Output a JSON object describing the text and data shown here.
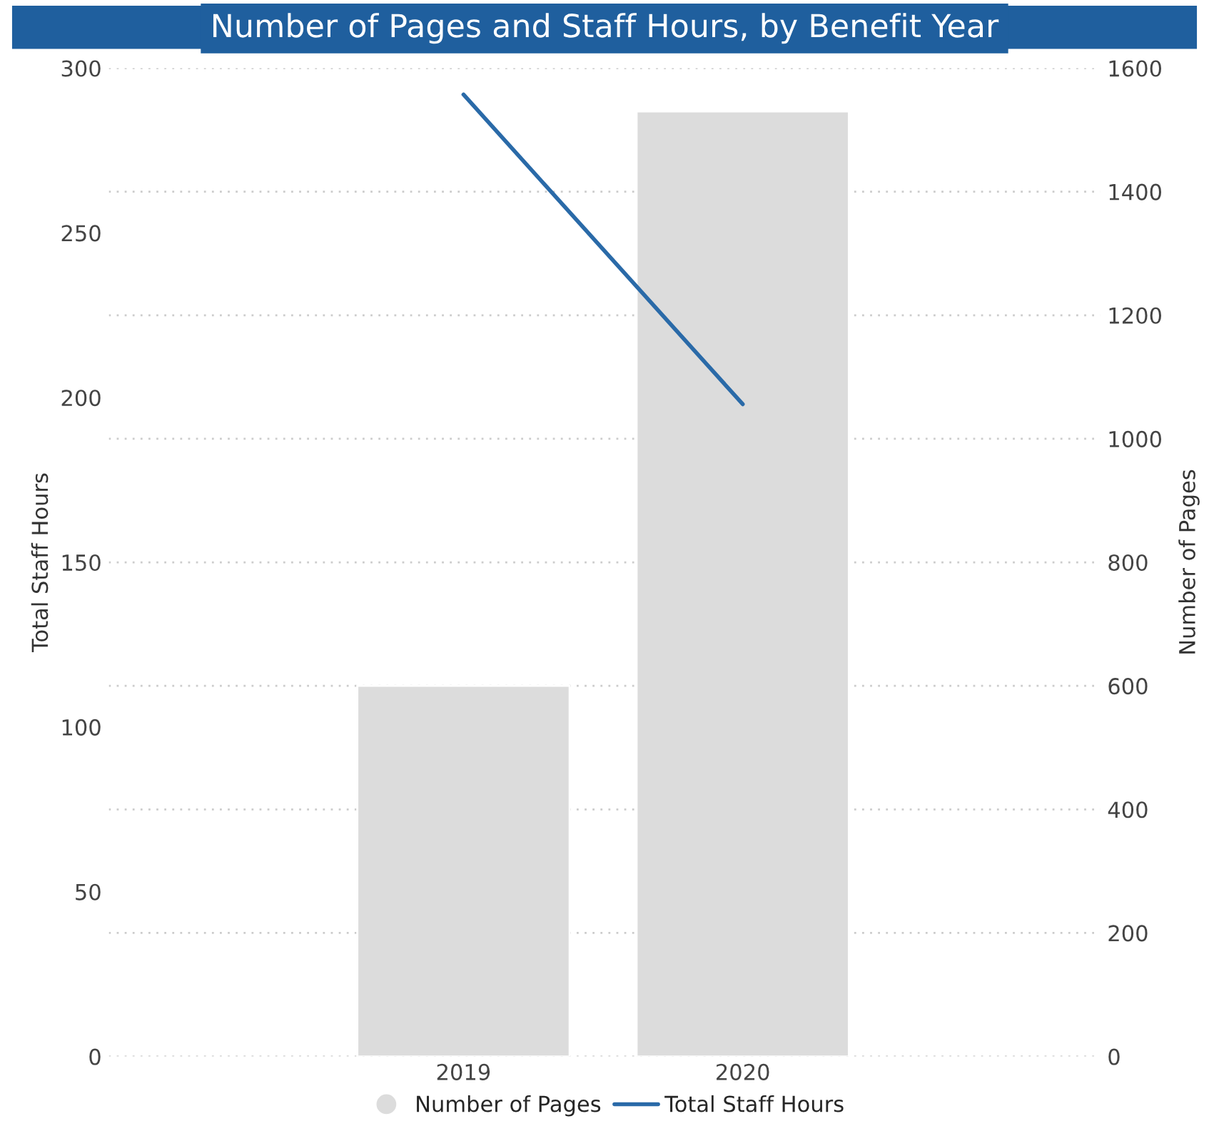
{
  "chart_data": {
    "type": "bar",
    "title": "Number of Pages and Staff Hours, by Benefit Year",
    "categories": [
      "2019",
      "2020"
    ],
    "series": [
      {
        "name": "Number of Pages",
        "axis": "y2",
        "color": "#dcdcdc",
        "values": [
          600,
          1530
        ]
      },
      {
        "name": "Total Staff Hours",
        "type": "line",
        "color": "#2a6aa8",
        "values": [
          292,
          198
        ]
      }
    ],
    "ylabel": "Total Staff Hours",
    "y2label": "Number of Pages",
    "ylim": [
      0,
      300
    ],
    "yticks": [
      0,
      50,
      100,
      150,
      200,
      250,
      300
    ],
    "y2lim": [
      0,
      1600
    ],
    "y2ticks": [
      0,
      200,
      400,
      600,
      800,
      1000,
      1200,
      1400,
      1600
    ],
    "grid": "y",
    "legend": "bottom"
  }
}
